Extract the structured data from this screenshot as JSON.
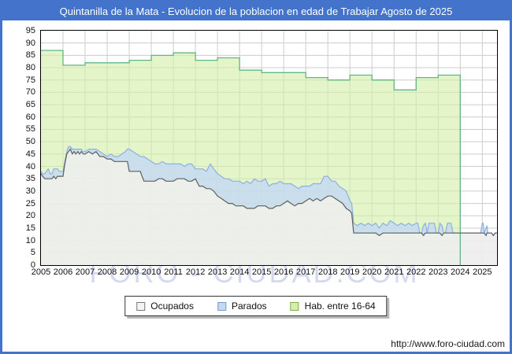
{
  "title": "Quintanilla de la Mata - Evolucion de la poblacion en edad de Trabajar Agosto de 2025",
  "watermark": "FORO - CIUDAD.COM",
  "footer_url": "http://www.foro-ciudad.com",
  "colors": {
    "frame_blue": "#4373cb",
    "grid": "#cccccc",
    "plot_border": "#000000",
    "ocupados_fill": "#eeeeee",
    "ocupados_line": "#5f5f5f",
    "parados_fill": "#c3d9f3",
    "parados_line": "#8cb0e0",
    "hab_fill": "#d3efa9",
    "hab_line": "#62b584",
    "watermark_color": "#c6cdec"
  },
  "legend": {
    "items": [
      {
        "label": "Ocupados",
        "fill": "#f4f4f4",
        "border": "#777777"
      },
      {
        "label": "Parados",
        "fill": "#c3d9f3",
        "border": "#7a9cc9"
      },
      {
        "label": "Hab. entre 16-64",
        "fill": "#d3efa9",
        "border": "#7fae4f"
      }
    ]
  },
  "chart_data": {
    "type": "area",
    "title": "Quintanilla de la Mata - Evolucion de la poblacion en edad de Trabajar Agosto de 2025",
    "xlabel": "",
    "ylabel": "",
    "x_range": [
      2005,
      2025.6667
    ],
    "ylim": [
      0,
      95
    ],
    "y_tick_step": 5,
    "y_ticks": [
      0,
      5,
      10,
      15,
      20,
      25,
      30,
      35,
      40,
      45,
      50,
      55,
      60,
      65,
      70,
      75,
      80,
      85,
      90,
      95
    ],
    "x_tick_labels": [
      "2005",
      "2006",
      "2007",
      "2008",
      "2009",
      "2010",
      "2011",
      "2012",
      "2013",
      "2014",
      "2015",
      "2016",
      "2017",
      "2018",
      "2019",
      "2020",
      "2021",
      "2022",
      "2023",
      "2024",
      "2025"
    ],
    "grid": true,
    "legend_position": "bottom",
    "series_note": "Parados is stacked on top of Ocupados; Hab. entre 16-64 is an annual step series drawn behind, ending at 2024.0",
    "hab_entre_16_64": {
      "years": [
        2005,
        2006,
        2007,
        2008,
        2009,
        2010,
        2011,
        2012,
        2013,
        2014,
        2015,
        2016,
        2017,
        2018,
        2019,
        2020,
        2021,
        2022,
        2023
      ],
      "values": [
        87,
        81,
        82,
        82,
        83,
        85,
        86,
        83,
        84,
        79,
        78,
        78,
        76,
        75,
        77,
        75,
        71,
        76,
        77
      ]
    },
    "monthly_t_ocupados_parados": [
      [
        2005.0,
        37,
        1
      ],
      [
        2005.08,
        36,
        1
      ],
      [
        2005.17,
        35,
        2
      ],
      [
        2005.25,
        35,
        3
      ],
      [
        2005.33,
        35,
        4
      ],
      [
        2005.42,
        35,
        2
      ],
      [
        2005.5,
        35,
        2
      ],
      [
        2005.58,
        36,
        3
      ],
      [
        2005.67,
        35,
        4
      ],
      [
        2005.75,
        36,
        3
      ],
      [
        2005.83,
        36,
        2
      ],
      [
        2005.92,
        36,
        2
      ],
      [
        2006.0,
        36,
        2
      ],
      [
        2006.08,
        41,
        1
      ],
      [
        2006.17,
        45,
        1
      ],
      [
        2006.25,
        46,
        2
      ],
      [
        2006.33,
        47,
        1
      ],
      [
        2006.42,
        45,
        2
      ],
      [
        2006.5,
        46,
        1
      ],
      [
        2006.58,
        45,
        2
      ],
      [
        2006.67,
        46,
        1
      ],
      [
        2006.75,
        45,
        2
      ],
      [
        2006.83,
        46,
        1
      ],
      [
        2006.92,
        45,
        1
      ],
      [
        2007.0,
        45,
        1
      ],
      [
        2007.17,
        46,
        1
      ],
      [
        2007.33,
        45,
        2
      ],
      [
        2007.5,
        46,
        1
      ],
      [
        2007.67,
        44,
        2
      ],
      [
        2007.83,
        44,
        1
      ],
      [
        2008.0,
        43,
        1
      ],
      [
        2008.17,
        43,
        2
      ],
      [
        2008.33,
        42,
        2
      ],
      [
        2008.5,
        42,
        2
      ],
      [
        2008.67,
        42,
        3
      ],
      [
        2008.83,
        42,
        4
      ],
      [
        2008.92,
        42,
        5
      ],
      [
        2009.0,
        38,
        9
      ],
      [
        2009.17,
        38,
        8
      ],
      [
        2009.33,
        38,
        7
      ],
      [
        2009.5,
        38,
        6
      ],
      [
        2009.58,
        36,
        8
      ],
      [
        2009.67,
        34,
        10
      ],
      [
        2009.83,
        34,
        9
      ],
      [
        2010.0,
        34,
        8
      ],
      [
        2010.17,
        34,
        7
      ],
      [
        2010.33,
        35,
        6
      ],
      [
        2010.5,
        35,
        7
      ],
      [
        2010.67,
        34,
        7
      ],
      [
        2010.83,
        34,
        7
      ],
      [
        2011.0,
        34,
        7
      ],
      [
        2011.17,
        35,
        6
      ],
      [
        2011.33,
        35,
        6
      ],
      [
        2011.5,
        35,
        5
      ],
      [
        2011.67,
        34,
        7
      ],
      [
        2011.83,
        34,
        7
      ],
      [
        2012.0,
        35,
        4
      ],
      [
        2012.17,
        32,
        7
      ],
      [
        2012.33,
        32,
        7
      ],
      [
        2012.5,
        31,
        7
      ],
      [
        2012.67,
        31,
        10
      ],
      [
        2012.83,
        30,
        9
      ],
      [
        2013.0,
        28,
        9
      ],
      [
        2013.17,
        27,
        9
      ],
      [
        2013.33,
        26,
        9
      ],
      [
        2013.5,
        25,
        10
      ],
      [
        2013.67,
        25,
        9
      ],
      [
        2013.83,
        24,
        10
      ],
      [
        2014.0,
        24,
        10
      ],
      [
        2014.17,
        24,
        9
      ],
      [
        2014.33,
        23,
        11
      ],
      [
        2014.5,
        23,
        10
      ],
      [
        2014.67,
        23,
        12
      ],
      [
        2014.83,
        24,
        10
      ],
      [
        2015.0,
        24,
        10
      ],
      [
        2015.17,
        24,
        11
      ],
      [
        2015.33,
        23,
        9
      ],
      [
        2015.5,
        23,
        10
      ],
      [
        2015.67,
        24,
        9
      ],
      [
        2015.83,
        24,
        10
      ],
      [
        2016.0,
        25,
        8
      ],
      [
        2016.17,
        26,
        7
      ],
      [
        2016.33,
        25,
        8
      ],
      [
        2016.5,
        24,
        8
      ],
      [
        2016.67,
        25,
        6
      ],
      [
        2016.83,
        25,
        7
      ],
      [
        2017.0,
        26,
        6
      ],
      [
        2017.17,
        27,
        5
      ],
      [
        2017.33,
        26,
        7
      ],
      [
        2017.5,
        27,
        6
      ],
      [
        2017.67,
        26,
        7
      ],
      [
        2017.83,
        27,
        9
      ],
      [
        2018.0,
        28,
        8
      ],
      [
        2018.17,
        28,
        6
      ],
      [
        2018.33,
        27,
        7
      ],
      [
        2018.5,
        26,
        6
      ],
      [
        2018.67,
        25,
        6
      ],
      [
        2018.83,
        23,
        7
      ],
      [
        2019.0,
        22,
        4
      ],
      [
        2019.08,
        21,
        4
      ],
      [
        2019.17,
        13,
        4
      ],
      [
        2019.33,
        13,
        3
      ],
      [
        2019.5,
        13,
        4
      ],
      [
        2019.67,
        13,
        3
      ],
      [
        2019.83,
        13,
        4
      ],
      [
        2020.0,
        13,
        3
      ],
      [
        2020.17,
        13,
        4
      ],
      [
        2020.33,
        12,
        3
      ],
      [
        2020.5,
        13,
        4
      ],
      [
        2020.67,
        13,
        3
      ],
      [
        2020.83,
        13,
        5
      ],
      [
        2021.0,
        13,
        4
      ],
      [
        2021.17,
        13,
        3
      ],
      [
        2021.33,
        13,
        4
      ],
      [
        2021.5,
        13,
        3
      ],
      [
        2021.67,
        13,
        4
      ],
      [
        2021.83,
        13,
        3
      ],
      [
        2022.0,
        13,
        4
      ],
      [
        2022.08,
        13,
        4
      ],
      [
        2022.17,
        13,
        0
      ],
      [
        2022.25,
        13,
        0
      ],
      [
        2022.33,
        12,
        4
      ],
      [
        2022.42,
        13,
        4
      ],
      [
        2022.5,
        13,
        0
      ],
      [
        2022.58,
        13,
        4
      ],
      [
        2022.67,
        13,
        4
      ],
      [
        2022.83,
        13,
        4
      ],
      [
        2022.92,
        13,
        0
      ],
      [
        2023.0,
        13,
        0
      ],
      [
        2023.08,
        13,
        4
      ],
      [
        2023.17,
        12,
        4
      ],
      [
        2023.25,
        13,
        0
      ],
      [
        2023.33,
        13,
        0
      ],
      [
        2023.42,
        13,
        4
      ],
      [
        2023.5,
        13,
        4
      ],
      [
        2023.58,
        13,
        4
      ],
      [
        2023.67,
        13,
        0
      ],
      [
        2023.83,
        13,
        0
      ],
      [
        2024.0,
        13,
        0
      ],
      [
        2024.25,
        13,
        0
      ],
      [
        2024.5,
        13,
        0
      ],
      [
        2024.75,
        13,
        0
      ],
      [
        2024.92,
        13,
        0
      ],
      [
        2025.0,
        13,
        4
      ],
      [
        2025.04,
        13,
        4
      ],
      [
        2025.08,
        13,
        0
      ],
      [
        2025.17,
        12,
        3
      ],
      [
        2025.21,
        13,
        3
      ],
      [
        2025.25,
        13,
        0
      ],
      [
        2025.42,
        13,
        0
      ],
      [
        2025.5,
        12,
        0
      ],
      [
        2025.58,
        13,
        0
      ],
      [
        2025.66,
        13,
        0
      ]
    ]
  }
}
